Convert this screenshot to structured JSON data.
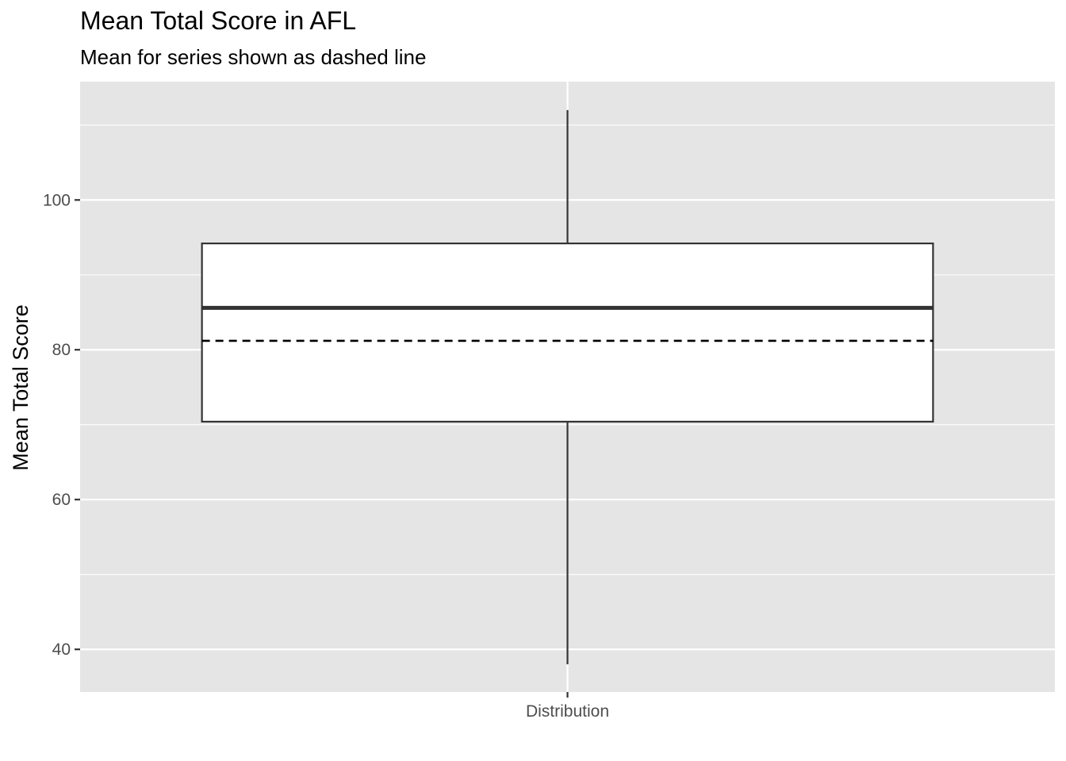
{
  "chart_data": {
    "type": "box",
    "title": "Mean Total Score in AFL",
    "subtitle": "Mean for series shown as dashed line",
    "xlabel": "",
    "ylabel": "Mean Total Score",
    "categories": [
      "Distribution"
    ],
    "box": {
      "category": "Distribution",
      "whisker_low": 38,
      "q1": 70.4,
      "median": 85.6,
      "q3": 94.2,
      "whisker_high": 112,
      "mean": 81.2
    },
    "ylim": [
      34.3,
      115.8
    ],
    "y_ticks": [
      40,
      60,
      80,
      100
    ],
    "y_tick_labels": [
      "40",
      "60",
      "80",
      "100"
    ],
    "grid": true,
    "legend": "none",
    "colors": {
      "panel_background": "#e5e5e5",
      "grid_line": "#ffffff",
      "box_fill": "#ffffff",
      "box_line": "#333333",
      "mean_line": "#000000",
      "tick_label": "#4d4d4d"
    }
  }
}
